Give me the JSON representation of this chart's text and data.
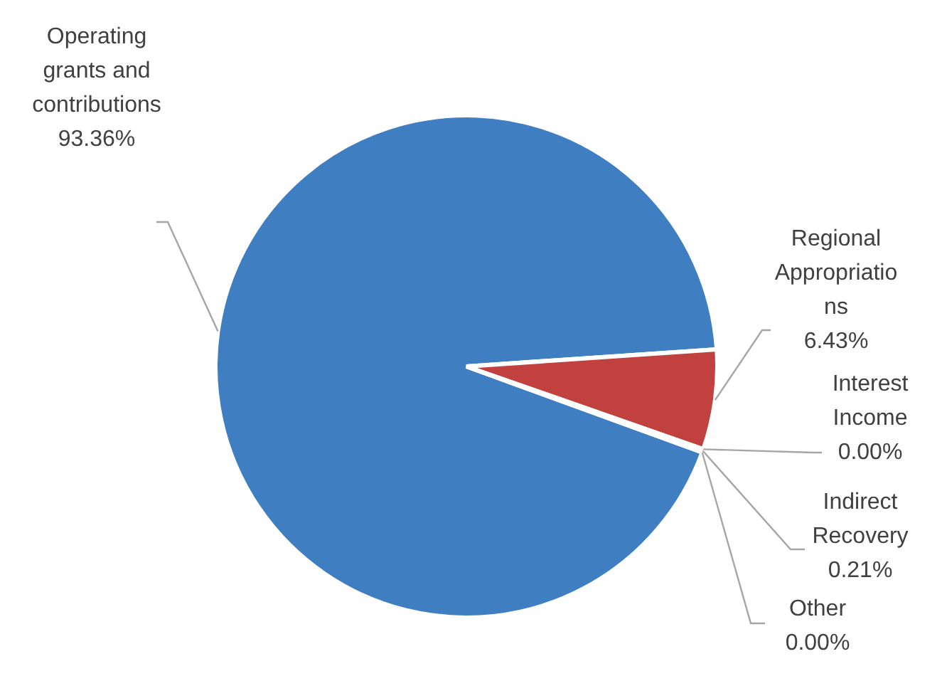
{
  "chart_data": {
    "type": "pie",
    "categories": [
      "Operating grants and contributions",
      "Regional Appropriations",
      "Interest Income",
      "Indirect Recovery",
      "Other"
    ],
    "values": [
      93.36,
      6.43,
      0.0,
      0.21,
      0.0
    ],
    "colors": [
      "#3e7ec1",
      "#c0413e",
      "#a5a5a5",
      "#e8a33a",
      "#5b9bd5"
    ],
    "value_labels": [
      "93.36%",
      "6.43%",
      "0.00%",
      "0.21%",
      "0.00%"
    ],
    "legend": false
  }
}
